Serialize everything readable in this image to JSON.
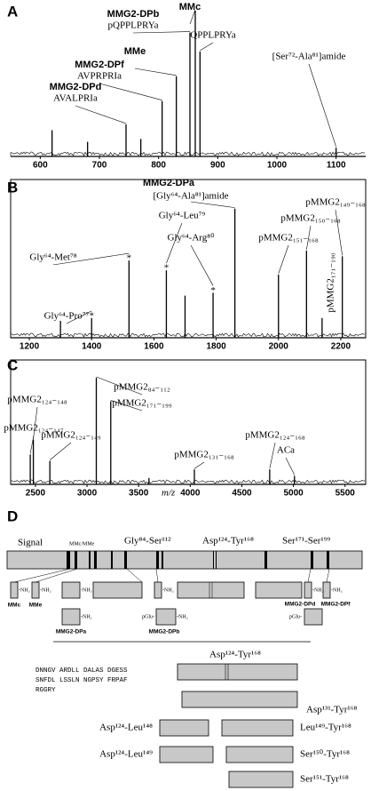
{
  "chart_data": [
    {
      "type": "spectrum",
      "panel": "A",
      "x": [
        620,
        680,
        745,
        770,
        806,
        830,
        853,
        862,
        870,
        1100
      ],
      "values": [
        18,
        10,
        22,
        12,
        38,
        55,
        85,
        100,
        72,
        6
      ],
      "peak_names": [
        null,
        null,
        "MMG2-DPd",
        null,
        "MMG2-DPf",
        "MMe",
        "MMG2-DPb",
        "MMc",
        null,
        null
      ],
      "peak_labels": [
        null,
        null,
        "AVALPRIa",
        null,
        "AVPRPRIa",
        null,
        "pQPPLPRYa",
        null,
        "QPPLPRYa",
        "[Ser⁷²-Ala⁸¹]amide"
      ],
      "xlim": [
        550,
        1150
      ],
      "xticks": [
        600,
        700,
        800,
        900,
        1000,
        1100
      ],
      "ylim": [
        0,
        100
      ],
      "color": "#000000"
    },
    {
      "type": "spectrum",
      "panel": "B",
      "x": [
        1300,
        1400,
        1520,
        1640,
        1700,
        1790,
        1860,
        2000,
        2090,
        2140,
        2205
      ],
      "values": [
        12,
        14,
        55,
        48,
        30,
        32,
        92,
        45,
        62,
        14,
        58
      ],
      "peak_names": [
        null,
        null,
        null,
        null,
        null,
        null,
        "MMG2-DPa",
        null,
        null,
        null,
        null
      ],
      "peak_labels": [
        null,
        "Gly⁶⁴-Pro⁷⁷",
        "Gly⁶⁴-Met⁷⁸",
        "Gly⁶⁴-Leu⁷⁹",
        null,
        "Gly⁶⁴-Arg⁸⁰",
        "[Gly⁶⁴-Ala⁸¹]amide",
        "pMMG2₁₅₁₋₁₆₈",
        "pMMG2₁₅₀₋₁₆₈",
        "pMMG2₁₇₁₋₁₉₀",
        "pMMG2₁₄₉₋₁₆₈"
      ],
      "peak_marks": [
        null,
        "*",
        "*",
        "*",
        null,
        "*",
        null,
        null,
        null,
        null,
        null
      ],
      "xlim": [
        1140,
        2280
      ],
      "xticks": [
        1200,
        1400,
        1600,
        1800,
        2000,
        2200
      ],
      "ylim": [
        0,
        100
      ],
      "color": "#000000"
    },
    {
      "type": "spectrum",
      "panel": "C",
      "x": [
        2450,
        2480,
        2640,
        3090,
        3230,
        3600,
        4040,
        4770,
        5010
      ],
      "values": [
        28,
        42,
        22,
        100,
        78,
        6,
        14,
        14,
        8
      ],
      "peak_labels": [
        "pMMG2₁₂₄₋₁₄₇",
        "pMMG2₁₂₄₋₁₄₈",
        "pMMG2₁₂₄₋₁₄₉",
        "pMMG2₈₄₋₁₁₂",
        "pMMG2₁₇₁₋₁₉₉",
        null,
        "pMMG2₁₃₁₋₁₆₈",
        "pMMG2₁₂₄₋₁₆₈",
        "ACa"
      ],
      "x_label": "m/z",
      "xlim": [
        2260,
        5700
      ],
      "xticks": [
        2500,
        3000,
        3500,
        4000,
        4500,
        5000,
        5500
      ],
      "ylim": [
        0,
        100
      ],
      "color": "#000000"
    }
  ],
  "diagram": {
    "panel": "D",
    "regions": [
      "Signal",
      "MMc/MMe",
      "Gly⁸⁴-Ser¹¹²",
      "Asp¹²⁴-Tyr¹⁶⁸",
      "Ser¹⁷¹-Ser¹⁹⁹"
    ],
    "nh2": "-NH₂",
    "pglu": "pGlu-",
    "peptides": [
      "MMc",
      "MMe",
      "MMG2-DPa",
      "MMG2-DPb",
      "MMG2-DPd",
      "MMG2-DPf"
    ],
    "fragment_title": "Asp¹²⁴-Tyr¹⁶⁸",
    "sequence": [
      "DNNGV ARDLL DALAS DGESS",
      "SNFDL LSSLN NGPSY FRPAF",
      "RGGRY"
    ],
    "fragments": [
      "Asp¹³¹-Tyr¹⁶⁸",
      "Asp¹²⁴-Leu¹⁴⁸",
      "Leu¹⁴⁹-Tyr¹⁶⁸",
      "Asp¹²⁴-Leu¹⁴⁹",
      "Ser¹⁵⁰-Tyr¹⁶⁸",
      "Ser¹⁵¹-Tyr¹⁶⁸"
    ]
  }
}
